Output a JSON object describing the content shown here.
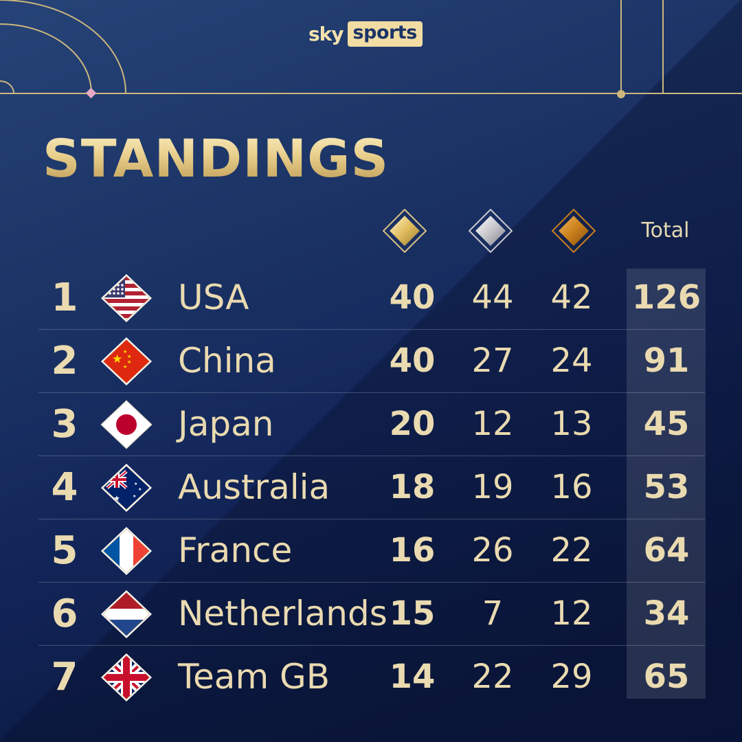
{
  "brand": {
    "sky": "sky",
    "sports": "sports"
  },
  "title": "STANDINGS",
  "headers": {
    "gold_icon": "gold-medal-icon",
    "silver_icon": "silver-medal-icon",
    "bronze_icon": "bronze-medal-icon",
    "total": "Total"
  },
  "colors": {
    "gold_text": "#eadab0",
    "background": "#1c3466",
    "gold_medal": "#e0bd5e",
    "silver_medal": "#c7c7cc",
    "bronze_medal": "#c9801c"
  },
  "rows": [
    {
      "rank": "1",
      "country": "USA",
      "flag": "usa-flag-icon",
      "gold": "40",
      "silver": "44",
      "bronze": "42",
      "total": "126"
    },
    {
      "rank": "2",
      "country": "China",
      "flag": "china-flag-icon",
      "gold": "40",
      "silver": "27",
      "bronze": "24",
      "total": "91"
    },
    {
      "rank": "3",
      "country": "Japan",
      "flag": "japan-flag-icon",
      "gold": "20",
      "silver": "12",
      "bronze": "13",
      "total": "45"
    },
    {
      "rank": "4",
      "country": "Australia",
      "flag": "australia-flag-icon",
      "gold": "18",
      "silver": "19",
      "bronze": "16",
      "total": "53"
    },
    {
      "rank": "5",
      "country": "France",
      "flag": "france-flag-icon",
      "gold": "16",
      "silver": "26",
      "bronze": "22",
      "total": "64"
    },
    {
      "rank": "6",
      "country": "Netherlands",
      "flag": "netherlands-flag-icon",
      "gold": "15",
      "silver": "7",
      "bronze": "12",
      "total": "34"
    },
    {
      "rank": "7",
      "country": "Team GB",
      "flag": "uk-flag-icon",
      "gold": "14",
      "silver": "22",
      "bronze": "29",
      "total": "65"
    }
  ]
}
